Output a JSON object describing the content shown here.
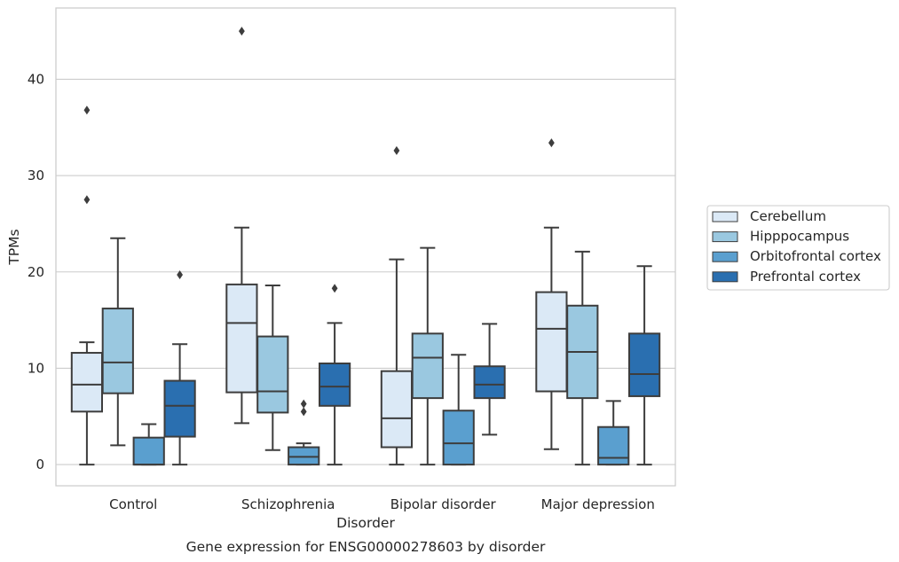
{
  "chart_data": {
    "type": "box",
    "title": "Gene expression for ENSG00000278603 by disorder",
    "xlabel": "Disorder",
    "ylabel": "TPMs",
    "ylim": [
      -2.2,
      47.4
    ],
    "yticks": [
      0,
      10,
      20,
      30,
      40
    ],
    "grid": "horizontal",
    "legend_position": "right",
    "categories": [
      "Control",
      "Schizophrenia",
      "Bipolar disorder",
      "Major depression"
    ],
    "series": [
      {
        "name": "Cerebellum",
        "color": "#dbe9f6",
        "boxes": [
          {
            "whisker_low": 0.0,
            "q1": 5.5,
            "median": 8.3,
            "q3": 11.6,
            "whisker_high": 12.7,
            "outliers": [
              27.5,
              36.8
            ]
          },
          {
            "whisker_low": 4.3,
            "q1": 7.5,
            "median": 14.7,
            "q3": 18.7,
            "whisker_high": 24.6,
            "outliers": [
              45.0
            ]
          },
          {
            "whisker_low": 0.0,
            "q1": 1.8,
            "median": 4.8,
            "q3": 9.7,
            "whisker_high": 21.3,
            "outliers": [
              32.6
            ]
          },
          {
            "whisker_low": 1.6,
            "q1": 7.6,
            "median": 14.1,
            "q3": 17.9,
            "whisker_high": 24.6,
            "outliers": [
              33.4
            ]
          }
        ]
      },
      {
        "name": "Hipppocampus",
        "color": "#9ac8e0",
        "boxes": [
          {
            "whisker_low": 2.0,
            "q1": 7.4,
            "median": 10.6,
            "q3": 16.2,
            "whisker_high": 23.5,
            "outliers": []
          },
          {
            "whisker_low": 1.5,
            "q1": 5.4,
            "median": 7.6,
            "q3": 13.3,
            "whisker_high": 18.6,
            "outliers": []
          },
          {
            "whisker_low": 0.0,
            "q1": 6.9,
            "median": 11.1,
            "q3": 13.6,
            "whisker_high": 22.5,
            "outliers": []
          },
          {
            "whisker_low": 0.0,
            "q1": 6.9,
            "median": 11.7,
            "q3": 16.5,
            "whisker_high": 22.1,
            "outliers": []
          }
        ]
      },
      {
        "name": "Orbitofrontal cortex",
        "color": "#5a9fcf",
        "boxes": [
          {
            "whisker_low": 0.0,
            "q1": 0.0,
            "median": 0.0,
            "q3": 2.8,
            "whisker_high": 4.2,
            "outliers": []
          },
          {
            "whisker_low": 0.0,
            "q1": 0.0,
            "median": 0.8,
            "q3": 1.8,
            "whisker_high": 2.2,
            "outliers": [
              5.5,
              6.3
            ]
          },
          {
            "whisker_low": 0.0,
            "q1": 0.0,
            "median": 2.2,
            "q3": 5.6,
            "whisker_high": 11.4,
            "outliers": []
          },
          {
            "whisker_low": 0.0,
            "q1": 0.0,
            "median": 0.7,
            "q3": 3.9,
            "whisker_high": 6.6,
            "outliers": []
          }
        ]
      },
      {
        "name": "Prefrontal cortex",
        "color": "#2a6fb0",
        "boxes": [
          {
            "whisker_low": 0.0,
            "q1": 2.9,
            "median": 6.1,
            "q3": 8.7,
            "whisker_high": 12.5,
            "outliers": [
              19.7
            ]
          },
          {
            "whisker_low": 0.0,
            "q1": 6.1,
            "median": 8.1,
            "q3": 10.5,
            "whisker_high": 14.7,
            "outliers": [
              18.3
            ]
          },
          {
            "whisker_low": 3.1,
            "q1": 6.9,
            "median": 8.3,
            "q3": 10.2,
            "whisker_high": 14.6,
            "outliers": []
          },
          {
            "whisker_low": 0.0,
            "q1": 7.1,
            "median": 9.4,
            "q3": 13.6,
            "whisker_high": 20.6,
            "outliers": []
          }
        ]
      }
    ]
  }
}
